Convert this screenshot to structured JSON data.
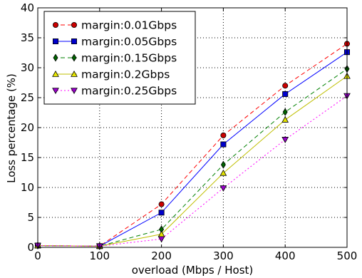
{
  "chart_data": {
    "type": "line",
    "xlabel": "overload (Mbps / Host)",
    "ylabel": "Loss percentage (%)",
    "x": [
      0,
      100,
      200,
      300,
      400,
      500
    ],
    "xlim": [
      0,
      500
    ],
    "ylim": [
      0,
      40
    ],
    "xticks": [
      "0",
      "100",
      "200",
      "300",
      "400",
      "500"
    ],
    "yticks": [
      "0",
      "5",
      "10",
      "15",
      "20",
      "25",
      "30",
      "35",
      "40"
    ],
    "grid": true,
    "legend_position": "top-left",
    "series": [
      {
        "name": "margin:0.01Gbps",
        "values": [
          0.3,
          0.2,
          7.2,
          18.7,
          27.0,
          34.0
        ],
        "color": "#ff0000",
        "marker_fill": "#cc0000",
        "marker": "circle",
        "dash": "6,4"
      },
      {
        "name": "margin:0.05Gbps",
        "values": [
          0.3,
          0.2,
          5.8,
          17.2,
          25.6,
          32.6
        ],
        "color": "#0000ff",
        "marker_fill": "#0000cc",
        "marker": "square",
        "dash": ""
      },
      {
        "name": "margin:0.15Gbps",
        "values": [
          0.3,
          0.2,
          3.0,
          13.8,
          22.6,
          29.8
        ],
        "color": "#008000",
        "marker_fill": "#006400",
        "marker": "diamond",
        "dash": "6,4"
      },
      {
        "name": "margin:0.2Gbps",
        "values": [
          0.3,
          0.2,
          2.2,
          12.4,
          21.3,
          28.6
        ],
        "color": "#bfbf00",
        "marker_fill": "#e6e600",
        "marker": "triangle-up",
        "dash": ""
      },
      {
        "name": "margin:0.25Gbps",
        "values": [
          0.3,
          0.2,
          1.4,
          9.9,
          18.0,
          25.3
        ],
        "color": "#ff00ff",
        "marker_fill": "#9900cc",
        "marker": "triangle-down",
        "dash": "2,3"
      }
    ]
  }
}
